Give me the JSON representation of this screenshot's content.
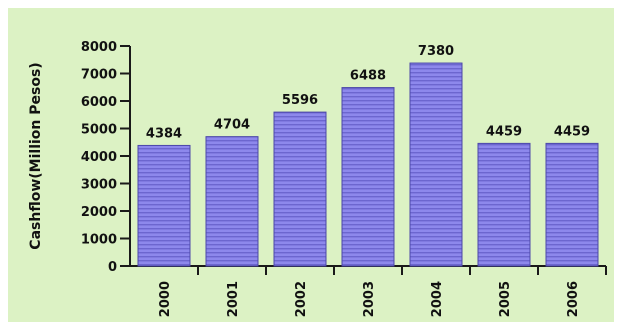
{
  "chart_data": {
    "type": "bar",
    "title": "",
    "xlabel": "",
    "ylabel": "Cashflow(Million Pesos)",
    "categories": [
      "2000",
      "2001",
      "2002",
      "2003",
      "2004",
      "2005",
      "2006"
    ],
    "values": [
      4384,
      4704,
      5596,
      6488,
      7380,
      4459,
      4459
    ],
    "value_labels": [
      "4384",
      "4704",
      "5596",
      "6488",
      "7380",
      "4459",
      "4459"
    ],
    "ylim": [
      0,
      8000
    ],
    "yticks": [
      0,
      1000,
      2000,
      3000,
      4000,
      5000,
      6000,
      7000,
      8000
    ],
    "ytick_labels": [
      "0",
      "1000",
      "2000",
      "3000",
      "4000",
      "5000",
      "6000",
      "7000",
      "8000"
    ],
    "grid": false,
    "legend": "none",
    "colors": {
      "background": "#dcf2c4",
      "bar_fill": "#8d88ec",
      "bar_stripe": "#6c66cf",
      "bar_edge": "#4b47a8",
      "axis": "#1a1a1a",
      "text": "#111111"
    }
  }
}
